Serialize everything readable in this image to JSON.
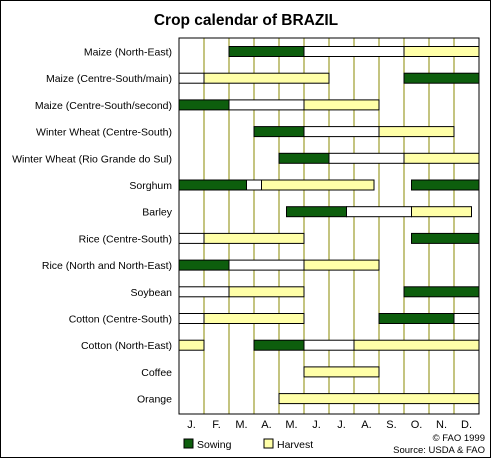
{
  "chart_data": {
    "type": "gantt",
    "title": "Crop calendar of BRAZIL",
    "months": [
      "J.",
      "F.",
      "M.",
      "A.",
      "M.",
      "J.",
      "J.",
      "A.",
      "S.",
      "O.",
      "N.",
      "D."
    ],
    "legend": {
      "placement": "bottom-center",
      "entries": [
        {
          "key": "sowing",
          "label": "Sowing"
        },
        {
          "key": "harvest",
          "label": "Harvest"
        }
      ]
    },
    "footer": {
      "copyright": "© FAO 1999",
      "source": "Source: USDA & FAO"
    },
    "colors": {
      "sowing": "#0d5e0d",
      "growing": "#ffffff",
      "harvest": "#ffffa8",
      "month_line": "#8a8a00",
      "border": "#000000"
    },
    "crops": [
      {
        "name": "Maize (North-East)",
        "periods": [
          {
            "phase": "sowing",
            "start": 2,
            "end": 5
          },
          {
            "phase": "growing",
            "start": 5,
            "end": 9
          },
          {
            "phase": "harvest",
            "start": 9,
            "end": 12
          }
        ]
      },
      {
        "name": "Maize (Centre-South/main)",
        "periods": [
          {
            "phase": "growing",
            "start": 0,
            "end": 1
          },
          {
            "phase": "harvest",
            "start": 1,
            "end": 6
          },
          {
            "phase": "sowing",
            "start": 9,
            "end": 12
          }
        ]
      },
      {
        "name": "Maize (Centre-South/second)",
        "periods": [
          {
            "phase": "sowing",
            "start": 0,
            "end": 2
          },
          {
            "phase": "growing",
            "start": 2,
            "end": 5
          },
          {
            "phase": "harvest",
            "start": 5,
            "end": 8
          }
        ]
      },
      {
        "name": "Winter Wheat (Centre-South)",
        "periods": [
          {
            "phase": "sowing",
            "start": 3,
            "end": 5
          },
          {
            "phase": "growing",
            "start": 5,
            "end": 8
          },
          {
            "phase": "harvest",
            "start": 8,
            "end": 11
          }
        ]
      },
      {
        "name": "Winter Wheat (Rio Grande do Sul)",
        "periods": [
          {
            "phase": "sowing",
            "start": 4,
            "end": 6
          },
          {
            "phase": "growing",
            "start": 6,
            "end": 9
          },
          {
            "phase": "harvest",
            "start": 9,
            "end": 12
          }
        ]
      },
      {
        "name": "Sorghum",
        "periods": [
          {
            "phase": "sowing",
            "start": 0,
            "end": 2.7
          },
          {
            "phase": "growing",
            "start": 2.7,
            "end": 3.3
          },
          {
            "phase": "harvest",
            "start": 3.3,
            "end": 7.8
          },
          {
            "phase": "sowing",
            "start": 9.3,
            "end": 12
          }
        ]
      },
      {
        "name": "Barley",
        "periods": [
          {
            "phase": "sowing",
            "start": 4.3,
            "end": 6.7
          },
          {
            "phase": "growing",
            "start": 6.7,
            "end": 9.3
          },
          {
            "phase": "harvest",
            "start": 9.3,
            "end": 11.7
          }
        ]
      },
      {
        "name": "Rice (Centre-South)",
        "periods": [
          {
            "phase": "growing",
            "start": 0,
            "end": 1
          },
          {
            "phase": "harvest",
            "start": 1,
            "end": 5
          },
          {
            "phase": "sowing",
            "start": 9.3,
            "end": 12
          }
        ]
      },
      {
        "name": "Rice (North and North-East)",
        "periods": [
          {
            "phase": "sowing",
            "start": 0,
            "end": 2
          },
          {
            "phase": "growing",
            "start": 2,
            "end": 5
          },
          {
            "phase": "harvest",
            "start": 5,
            "end": 8
          }
        ]
      },
      {
        "name": "Soybean",
        "periods": [
          {
            "phase": "growing",
            "start": 0,
            "end": 2
          },
          {
            "phase": "harvest",
            "start": 2,
            "end": 5
          },
          {
            "phase": "sowing",
            "start": 9,
            "end": 12
          }
        ]
      },
      {
        "name": "Cotton (Centre-South)",
        "periods": [
          {
            "phase": "growing",
            "start": 0,
            "end": 1
          },
          {
            "phase": "harvest",
            "start": 1,
            "end": 5
          },
          {
            "phase": "sowing",
            "start": 8,
            "end": 11
          },
          {
            "phase": "growing",
            "start": 11,
            "end": 12
          }
        ]
      },
      {
        "name": "Cotton (North-East)",
        "periods": [
          {
            "phase": "harvest",
            "start": 0,
            "end": 1
          },
          {
            "phase": "sowing",
            "start": 3,
            "end": 5
          },
          {
            "phase": "growing",
            "start": 5,
            "end": 7
          },
          {
            "phase": "harvest",
            "start": 7,
            "end": 12
          }
        ]
      },
      {
        "name": "Coffee",
        "periods": [
          {
            "phase": "harvest",
            "start": 5,
            "end": 8
          }
        ]
      },
      {
        "name": "Orange",
        "periods": [
          {
            "phase": "harvest",
            "start": 4,
            "end": 12
          }
        ]
      }
    ]
  }
}
